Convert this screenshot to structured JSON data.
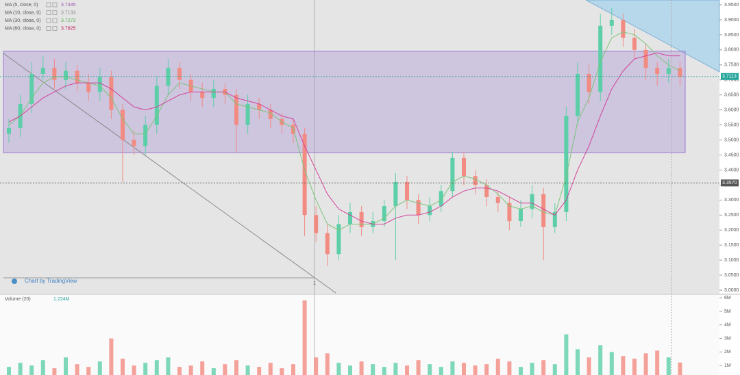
{
  "chart_data": [
    {
      "type": "candlestick",
      "open": [
        3.52,
        3.54,
        3.62,
        3.72,
        3.74,
        3.7,
        3.73,
        3.69,
        3.66,
        3.71,
        3.6,
        3.5,
        3.48,
        3.55,
        3.68,
        3.74,
        3.7,
        3.66,
        3.64,
        3.67,
        3.65,
        3.55,
        3.62,
        3.6,
        3.57,
        3.55,
        3.52,
        3.25,
        3.19,
        3.12,
        3.22,
        3.26,
        3.21,
        3.23,
        3.28,
        3.36,
        3.3,
        3.25,
        3.28,
        3.33,
        3.44,
        3.38,
        3.35,
        3.31,
        3.29,
        3.23,
        3.27,
        3.32,
        3.21,
        3.26,
        3.58,
        3.72,
        3.66,
        3.88,
        3.9,
        3.84,
        3.8,
        3.74,
        3.72,
        3.74
      ],
      "high": [
        3.57,
        3.65,
        3.76,
        3.78,
        3.77,
        3.76,
        3.75,
        3.72,
        3.74,
        3.73,
        3.62,
        3.53,
        3.58,
        3.71,
        3.77,
        3.76,
        3.72,
        3.69,
        3.7,
        3.69,
        3.67,
        3.65,
        3.64,
        3.62,
        3.59,
        3.57,
        3.54,
        3.28,
        3.22,
        3.25,
        3.29,
        3.28,
        3.26,
        3.3,
        3.39,
        3.38,
        3.32,
        3.31,
        3.35,
        3.46,
        3.46,
        3.4,
        3.37,
        3.33,
        3.31,
        3.3,
        3.35,
        3.34,
        3.29,
        3.61,
        3.76,
        3.75,
        3.92,
        3.94,
        3.92,
        3.87,
        3.82,
        3.76,
        3.77,
        3.76
      ],
      "low": [
        3.49,
        3.51,
        3.59,
        3.7,
        3.67,
        3.67,
        3.66,
        3.63,
        3.63,
        3.57,
        3.36,
        3.45,
        3.45,
        3.52,
        3.65,
        3.67,
        3.63,
        3.61,
        3.61,
        3.62,
        3.46,
        3.52,
        3.57,
        3.54,
        3.52,
        3.49,
        3.18,
        3.16,
        3.08,
        3.1,
        3.19,
        3.18,
        3.19,
        3.21,
        3.1,
        3.27,
        3.22,
        3.23,
        3.26,
        3.31,
        3.35,
        3.32,
        3.28,
        3.26,
        3.2,
        3.21,
        3.24,
        3.1,
        3.19,
        3.23,
        3.55,
        3.62,
        3.63,
        3.85,
        3.81,
        3.77,
        3.7,
        3.68,
        3.69,
        3.68
      ],
      "close": [
        3.54,
        3.62,
        3.72,
        3.74,
        3.7,
        3.73,
        3.69,
        3.66,
        3.71,
        3.6,
        3.5,
        3.48,
        3.55,
        3.68,
        3.74,
        3.7,
        3.66,
        3.64,
        3.67,
        3.65,
        3.55,
        3.62,
        3.6,
        3.57,
        3.55,
        3.52,
        3.25,
        3.19,
        3.12,
        3.22,
        3.26,
        3.21,
        3.23,
        3.28,
        3.36,
        3.3,
        3.25,
        3.28,
        3.33,
        3.44,
        3.38,
        3.35,
        3.31,
        3.29,
        3.23,
        3.27,
        3.32,
        3.21,
        3.26,
        3.58,
        3.72,
        3.66,
        3.88,
        3.9,
        3.84,
        3.8,
        3.74,
        3.72,
        3.74,
        3.71
      ],
      "up_color": "#5ccfa8",
      "down_color": "#f28b82",
      "series": [
        {
          "name": "MA (30, close, 0)",
          "color": "#7cc47a",
          "values": [
            3.55,
            3.58,
            3.64,
            3.69,
            3.71,
            3.71,
            3.7,
            3.69,
            3.68,
            3.64,
            3.57,
            3.52,
            3.52,
            3.58,
            3.65,
            3.69,
            3.68,
            3.67,
            3.66,
            3.66,
            3.62,
            3.61,
            3.6,
            3.59,
            3.56,
            3.54,
            3.4,
            3.3,
            3.22,
            3.2,
            3.22,
            3.22,
            3.22,
            3.24,
            3.28,
            3.3,
            3.29,
            3.28,
            3.3,
            3.36,
            3.38,
            3.37,
            3.35,
            3.32,
            3.28,
            3.27,
            3.28,
            3.26,
            3.25,
            3.38,
            3.56,
            3.64,
            3.76,
            3.84,
            3.86,
            3.85,
            3.82,
            3.78,
            3.75,
            3.73
          ]
        },
        {
          "name": "MA (60, close, 0)",
          "color": "#d0439a",
          "values": [
            3.56,
            3.58,
            3.61,
            3.64,
            3.66,
            3.68,
            3.69,
            3.69,
            3.69,
            3.67,
            3.64,
            3.61,
            3.6,
            3.61,
            3.63,
            3.65,
            3.66,
            3.66,
            3.66,
            3.66,
            3.64,
            3.63,
            3.62,
            3.6,
            3.58,
            3.57,
            3.48,
            3.4,
            3.32,
            3.27,
            3.25,
            3.23,
            3.22,
            3.22,
            3.24,
            3.25,
            3.25,
            3.26,
            3.28,
            3.31,
            3.33,
            3.34,
            3.34,
            3.33,
            3.31,
            3.29,
            3.29,
            3.27,
            3.25,
            3.3,
            3.4,
            3.48,
            3.58,
            3.67,
            3.73,
            3.77,
            3.78,
            3.79,
            3.78,
            3.78
          ]
        }
      ],
      "legend": [
        {
          "label": "MA (5, close, 0)",
          "value": "3.7335",
          "color": "#9b59b6"
        },
        {
          "label": "MA (10, close, 0)",
          "value": "3.7133",
          "color": "#8a8a8a"
        },
        {
          "label": "MA (30, close, 0)",
          "value": "3.7273",
          "color": "#4caf50"
        },
        {
          "label": "MA (60, close, 0)",
          "value": "3.7825",
          "color": "#c2185b"
        }
      ],
      "price_labels": [
        {
          "value": 3.7113,
          "label": "3.7113",
          "color": "#26a69a"
        },
        {
          "value": 3.357,
          "label": "3.3570",
          "color": "#555555"
        }
      ],
      "watermark": "Chart by TradingView",
      "marker": "1",
      "ylim": [
        2.991,
        3.966
      ],
      "yticks": [
        {
          "value": 3.0,
          "label": "3.0000"
        },
        {
          "value": 3.05,
          "label": "3.0500"
        },
        {
          "value": 3.1,
          "label": "3.1000"
        },
        {
          "value": 3.15,
          "label": "3.1500"
        },
        {
          "value": 3.2,
          "label": "3.2000"
        },
        {
          "value": 3.25,
          "label": "3.2500"
        },
        {
          "value": 3.3,
          "label": "3.3000"
        },
        {
          "value": 3.35,
          "label": "3.3500"
        },
        {
          "value": 3.4,
          "label": "3.4000"
        },
        {
          "value": 3.45,
          "label": "3.4500"
        },
        {
          "value": 3.5,
          "label": "3.5000"
        },
        {
          "value": 3.55,
          "label": "3.5500"
        },
        {
          "value": 3.6,
          "label": "3.6000"
        },
        {
          "value": 3.65,
          "label": "3.6500"
        },
        {
          "value": 3.7,
          "label": "3.7000"
        },
        {
          "value": 3.75,
          "label": "3.7500"
        },
        {
          "value": 3.8,
          "label": "3.8000"
        },
        {
          "value": 3.85,
          "label": "3.8500"
        },
        {
          "value": 3.9,
          "label": "3.9000"
        },
        {
          "value": 3.95,
          "label": "3.9500"
        }
      ]
    },
    {
      "type": "bar",
      "title": "Volume (20)",
      "last_value": "1.224M",
      "values": [
        0.9,
        1.2,
        1.0,
        1.4,
        0.8,
        1.6,
        1.1,
        0.9,
        1.3,
        3.0,
        1.5,
        1.0,
        1.2,
        1.4,
        1.6,
        0.9,
        1.0,
        1.3,
        0.8,
        1.1,
        1.4,
        1.0,
        0.9,
        1.2,
        0.8,
        1.1,
        5.8,
        1.6,
        1.9,
        1.2,
        1.0,
        1.3,
        1.1,
        0.9,
        1.2,
        1.0,
        1.4,
        1.1,
        0.9,
        1.3,
        1.2,
        1.0,
        1.1,
        1.5,
        1.3,
        0.9,
        1.2,
        1.4,
        1.1,
        3.3,
        2.2,
        1.6,
        2.5,
        2.0,
        1.7,
        1.5,
        1.9,
        2.1,
        1.6,
        1.224
      ],
      "ylim": [
        0.3,
        6.16
      ],
      "yticks": [
        {
          "value": 1,
          "label": "1M"
        },
        {
          "value": 2,
          "label": "2M"
        },
        {
          "value": 3,
          "label": "3M"
        },
        {
          "value": 4,
          "label": "4M"
        },
        {
          "value": 5,
          "label": "5M"
        },
        {
          "value": 6,
          "label": "6M"
        }
      ]
    }
  ]
}
